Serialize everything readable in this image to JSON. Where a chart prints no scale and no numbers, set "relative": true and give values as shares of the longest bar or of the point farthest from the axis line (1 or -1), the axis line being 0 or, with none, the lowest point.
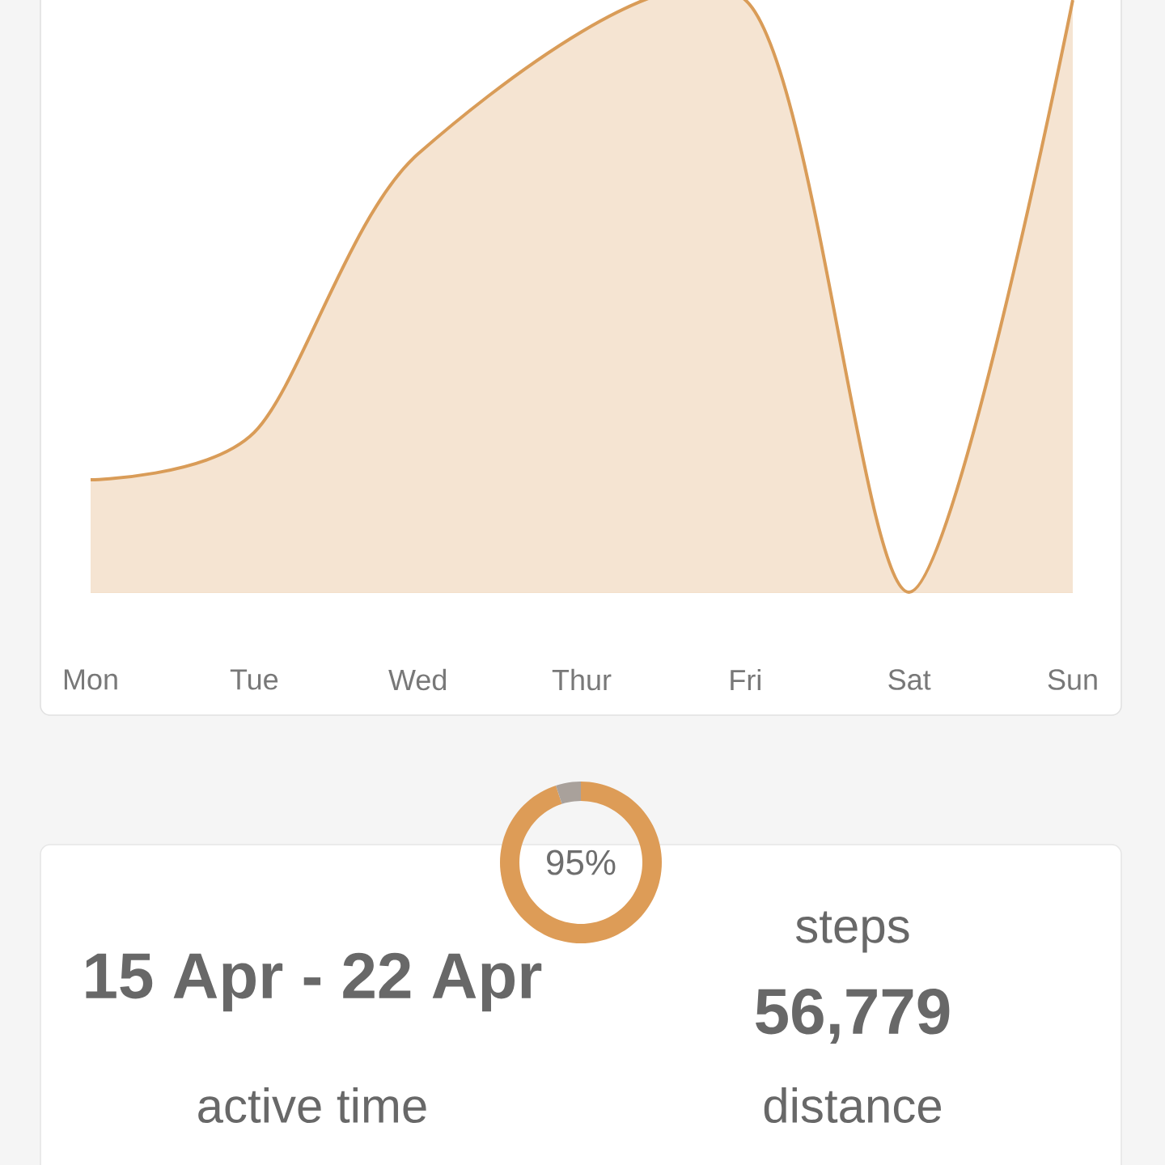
{
  "chart_data": [
    {
      "type": "area",
      "relative": true,
      "categories": [
        "Mon",
        "Tue",
        "Wed",
        "Thur",
        "Fri",
        "Sat",
        "Sun"
      ],
      "series": [
        {
          "color": "#d99c58",
          "values": [
            0.19,
            0.27,
            0.74,
            null,
            1,
            0,
            1
          ]
        }
      ]
    },
    {
      "type": "donut",
      "categories": [
        null,
        null
      ],
      "values": [
        95,
        5
      ],
      "colors": [
        "#dd9c57",
        "#a9a19b"
      ],
      "value_labels": [
        "95%",
        null
      ]
    },
    {
      "type": "other",
      "annotations": [
        "15 Apr - 22 Apr",
        "steps",
        "56,779",
        "active time",
        "distance"
      ]
    }
  ]
}
